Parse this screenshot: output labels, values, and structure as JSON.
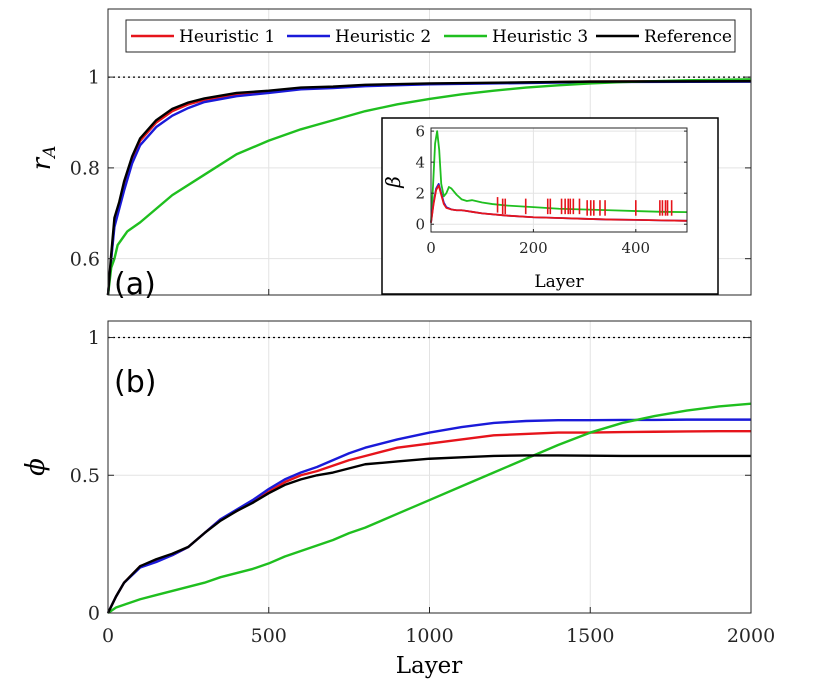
{
  "chart_data": [
    {
      "type": "line",
      "panel_label": "(a)",
      "xlabel": "",
      "ylabel": "r",
      "ylabel_sub": "A",
      "xlim": [
        0,
        2000
      ],
      "ylim": [
        0.52,
        1.15
      ],
      "yticks": [
        0.6,
        0.8,
        1
      ],
      "ytick_labels": [
        "0.6",
        "0.8",
        "1"
      ],
      "xticks": [
        0,
        500,
        1000,
        1500,
        2000
      ],
      "grid": true,
      "reference_line": 1,
      "legend": {
        "placement": "top",
        "entries": [
          "Heuristic 1",
          "Heuristic 2",
          "Heuristic 3",
          "Reference"
        ]
      },
      "series": [
        {
          "name": "Heuristic 1",
          "color": "#e6141b",
          "x": [
            0,
            10,
            20,
            35,
            50,
            75,
            100,
            150,
            200,
            250,
            300,
            400,
            500,
            600,
            700,
            800,
            1000,
            1500,
            2000
          ],
          "y": [
            0.52,
            0.6,
            0.68,
            0.72,
            0.76,
            0.82,
            0.86,
            0.9,
            0.925,
            0.94,
            0.95,
            0.962,
            0.968,
            0.975,
            0.978,
            0.982,
            0.985,
            0.99,
            0.991
          ]
        },
        {
          "name": "Heuristic 2",
          "color": "#1a1ad9",
          "x": [
            0,
            10,
            20,
            35,
            50,
            75,
            100,
            150,
            200,
            250,
            300,
            400,
            500,
            600,
            700,
            800,
            1000,
            1500,
            2000
          ],
          "y": [
            0.52,
            0.6,
            0.67,
            0.71,
            0.75,
            0.81,
            0.85,
            0.89,
            0.915,
            0.932,
            0.945,
            0.958,
            0.965,
            0.973,
            0.976,
            0.98,
            0.984,
            0.989,
            0.99
          ]
        },
        {
          "name": "Heuristic 3",
          "color": "#1fbf1f",
          "x": [
            0,
            10,
            20,
            30,
            45,
            60,
            80,
            100,
            150,
            200,
            300,
            400,
            500,
            600,
            700,
            800,
            900,
            1000,
            1100,
            1200,
            1300,
            1400,
            1500,
            1600,
            1700,
            1800,
            1900,
            2000
          ],
          "y": [
            0.52,
            0.58,
            0.6,
            0.63,
            0.645,
            0.66,
            0.67,
            0.68,
            0.71,
            0.74,
            0.785,
            0.83,
            0.86,
            0.885,
            0.905,
            0.925,
            0.94,
            0.952,
            0.962,
            0.97,
            0.977,
            0.982,
            0.986,
            0.989,
            0.991,
            0.993,
            0.994,
            0.995
          ]
        },
        {
          "name": "Reference",
          "color": "#000000",
          "x": [
            0,
            10,
            20,
            35,
            50,
            75,
            100,
            150,
            200,
            250,
            300,
            400,
            500,
            600,
            700,
            800,
            1000,
            1500,
            2000
          ],
          "y": [
            0.52,
            0.61,
            0.69,
            0.725,
            0.77,
            0.825,
            0.865,
            0.905,
            0.93,
            0.944,
            0.953,
            0.965,
            0.97,
            0.977,
            0.979,
            0.983,
            0.986,
            0.99,
            0.991
          ]
        }
      ]
    },
    {
      "type": "line",
      "inset_of": "(a)",
      "xlabel": "Layer",
      "ylabel": "β",
      "xlim": [
        0,
        500
      ],
      "ylim": [
        -0.5,
        6.2
      ],
      "yticks": [
        0,
        2,
        4,
        6
      ],
      "ytick_labels": [
        "0",
        "2",
        "4",
        "6"
      ],
      "xticks": [
        0,
        200,
        400
      ],
      "xtick_labels": [
        "0",
        "200",
        "400"
      ],
      "grid": true,
      "series": [
        {
          "name": "Heuristic 3",
          "color": "#1fbf1f",
          "x": [
            0,
            4,
            8,
            12,
            16,
            20,
            25,
            30,
            35,
            40,
            50,
            60,
            70,
            80,
            100,
            120,
            150,
            200,
            250,
            300,
            350,
            400,
            450,
            500
          ],
          "y": [
            0.1,
            2.5,
            5.2,
            6.0,
            4.8,
            2.6,
            1.8,
            2.0,
            2.4,
            2.3,
            1.9,
            1.6,
            1.5,
            1.55,
            1.4,
            1.3,
            1.2,
            1.1,
            1.0,
            0.95,
            0.9,
            0.85,
            0.8,
            0.78
          ]
        },
        {
          "name": "Heuristic 2",
          "color": "#1a1ad9",
          "x": [
            0,
            5,
            10,
            15,
            20,
            25,
            30,
            40,
            50,
            60,
            70,
            80,
            100,
            150,
            200,
            250,
            300,
            350,
            400,
            450,
            500
          ],
          "y": [
            0.1,
            1.4,
            2.3,
            2.6,
            2.0,
            1.4,
            1.1,
            0.95,
            0.9,
            0.9,
            0.85,
            0.8,
            0.7,
            0.55,
            0.45,
            0.4,
            0.35,
            0.3,
            0.28,
            0.25,
            0.22
          ]
        },
        {
          "name": "Heuristic 1",
          "color": "#e6141b",
          "x": [
            0,
            5,
            10,
            15,
            20,
            25,
            30,
            40,
            50,
            60,
            70,
            80,
            100,
            150,
            200,
            250,
            300,
            350,
            400,
            450,
            500
          ],
          "y": [
            0.1,
            1.3,
            2.2,
            2.5,
            1.9,
            1.3,
            1.05,
            0.95,
            0.9,
            0.9,
            0.85,
            0.8,
            0.7,
            0.55,
            0.45,
            0.4,
            0.35,
            0.3,
            0.28,
            0.25,
            0.22
          ]
        },
        {
          "name": "Heuristic 1 spikes",
          "color": "#e6141b",
          "x": [
            130,
            140,
            145,
            185,
            228,
            233,
            255,
            262,
            268,
            272,
            278,
            290,
            305,
            312,
            318,
            330,
            340,
            400,
            447,
            452,
            458,
            462,
            470
          ],
          "y": [
            1.1,
            1.0,
            1.0,
            1.0,
            1.0,
            1.0,
            1.0,
            1.0,
            1.0,
            1.0,
            1.0,
            1.0,
            0.9,
            0.9,
            0.9,
            0.9,
            0.9,
            0.9,
            0.9,
            0.9,
            0.9,
            0.9,
            0.9
          ]
        }
      ]
    },
    {
      "type": "line",
      "panel_label": "(b)",
      "xlabel": "Layer",
      "ylabel": "ϕ",
      "xlim": [
        0,
        2000
      ],
      "ylim": [
        0,
        1.06
      ],
      "yticks": [
        0,
        0.5,
        1
      ],
      "ytick_labels": [
        "0",
        "0.5",
        "1"
      ],
      "xticks": [
        0,
        500,
        1000,
        1500,
        2000
      ],
      "xtick_labels": [
        "0",
        "500",
        "1000",
        "1500",
        "2000"
      ],
      "grid": true,
      "reference_line": 1,
      "series": [
        {
          "name": "Heuristic 1",
          "color": "#e6141b",
          "x": [
            0,
            25,
            50,
            100,
            150,
            200,
            250,
            300,
            350,
            400,
            450,
            500,
            550,
            600,
            650,
            700,
            750,
            800,
            900,
            1000,
            1100,
            1200,
            1300,
            1400,
            1500,
            1600,
            1700,
            1800,
            1900,
            2000
          ],
          "y": [
            0,
            0.06,
            0.11,
            0.17,
            0.19,
            0.21,
            0.24,
            0.29,
            0.34,
            0.37,
            0.405,
            0.44,
            0.475,
            0.5,
            0.515,
            0.535,
            0.555,
            0.57,
            0.6,
            0.615,
            0.63,
            0.645,
            0.65,
            0.655,
            0.655,
            0.657,
            0.658,
            0.659,
            0.66,
            0.66
          ]
        },
        {
          "name": "Heuristic 2",
          "color": "#1a1ad9",
          "x": [
            0,
            25,
            50,
            100,
            150,
            200,
            250,
            300,
            350,
            400,
            450,
            500,
            550,
            600,
            650,
            700,
            750,
            800,
            900,
            1000,
            1100,
            1200,
            1300,
            1400,
            1500,
            1600,
            1700,
            1800,
            1900,
            2000
          ],
          "y": [
            0,
            0.06,
            0.11,
            0.165,
            0.185,
            0.21,
            0.24,
            0.29,
            0.34,
            0.375,
            0.41,
            0.45,
            0.485,
            0.51,
            0.53,
            0.555,
            0.58,
            0.6,
            0.63,
            0.655,
            0.675,
            0.69,
            0.697,
            0.7,
            0.7,
            0.701,
            0.701,
            0.702,
            0.702,
            0.702
          ]
        },
        {
          "name": "Heuristic 3",
          "color": "#1fbf1f",
          "x": [
            0,
            25,
            50,
            100,
            150,
            200,
            250,
            300,
            350,
            400,
            450,
            500,
            550,
            600,
            650,
            700,
            750,
            800,
            850,
            900,
            950,
            1000,
            1100,
            1200,
            1300,
            1400,
            1500,
            1600,
            1700,
            1800,
            1900,
            2000
          ],
          "y": [
            0,
            0.02,
            0.03,
            0.05,
            0.065,
            0.08,
            0.095,
            0.11,
            0.13,
            0.145,
            0.16,
            0.18,
            0.205,
            0.225,
            0.245,
            0.265,
            0.29,
            0.31,
            0.335,
            0.36,
            0.385,
            0.41,
            0.46,
            0.51,
            0.56,
            0.61,
            0.655,
            0.69,
            0.715,
            0.735,
            0.75,
            0.76
          ]
        },
        {
          "name": "Reference",
          "color": "#000000",
          "x": [
            0,
            25,
            50,
            100,
            150,
            200,
            250,
            300,
            350,
            400,
            450,
            500,
            550,
            600,
            650,
            700,
            750,
            800,
            900,
            1000,
            1100,
            1200,
            1300,
            1400,
            1500,
            1600,
            1700,
            1800,
            1900,
            2000
          ],
          "y": [
            0,
            0.06,
            0.11,
            0.17,
            0.195,
            0.215,
            0.24,
            0.29,
            0.335,
            0.37,
            0.4,
            0.435,
            0.465,
            0.485,
            0.5,
            0.51,
            0.525,
            0.54,
            0.55,
            0.56,
            0.565,
            0.57,
            0.572,
            0.572,
            0.571,
            0.57,
            0.57,
            0.57,
            0.57,
            0.57
          ]
        }
      ]
    }
  ]
}
